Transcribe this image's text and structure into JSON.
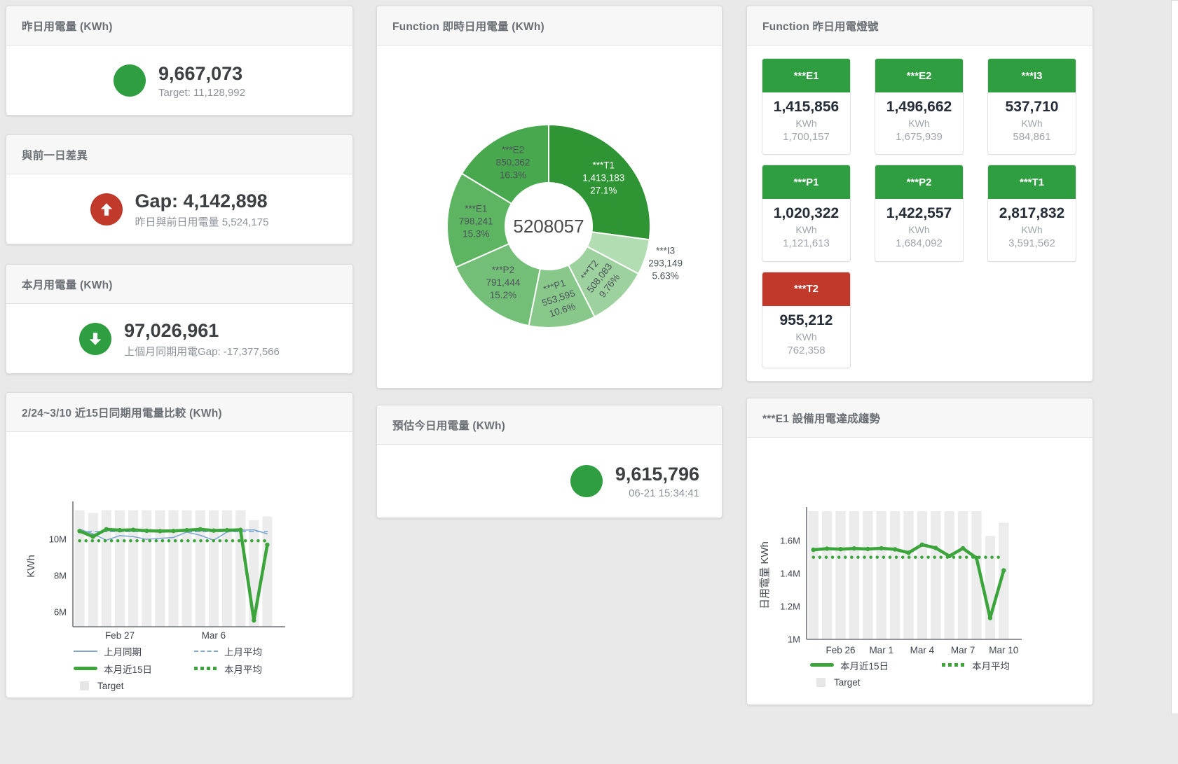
{
  "panels": {
    "yesterday": {
      "title": "昨日用電量 (KWh)",
      "value": "9,667,073",
      "subtitle": "Target: 11,128,992"
    },
    "diff_prev_day": {
      "title": "與前一日差異",
      "value": "Gap: 4,142,898",
      "subtitle": "昨日與前日用電量 5,524,175"
    },
    "month_usage": {
      "title": "本月用電量 (KWh)",
      "value": "97,026,961",
      "subtitle": "上個月同期用電Gap: -17,377,566"
    },
    "estimate_today": {
      "title": "預估今日用電量 (KWh)",
      "value": "9,615,796",
      "subtitle": "06-21 15:34:41"
    },
    "realtime_donut": {
      "title": "Function 即時日用電量 (KWh)"
    },
    "lights": {
      "title": "Function 昨日用電燈號",
      "unit": "KWh",
      "tiles": [
        {
          "name": "***E1",
          "value": "1,415,856",
          "target": "1,700,157",
          "status": "green"
        },
        {
          "name": "***E2",
          "value": "1,496,662",
          "target": "1,675,939",
          "status": "green"
        },
        {
          "name": "***I3",
          "value": "537,710",
          "target": "584,861",
          "status": "green"
        },
        {
          "name": "***P1",
          "value": "1,020,322",
          "target": "1,121,613",
          "status": "green"
        },
        {
          "name": "***P2",
          "value": "1,422,557",
          "target": "1,684,092",
          "status": "green"
        },
        {
          "name": "***T1",
          "value": "2,817,832",
          "target": "3,591,562",
          "status": "green"
        },
        {
          "name": "***T2",
          "value": "955,212",
          "target": "762,358",
          "status": "red"
        }
      ]
    },
    "compare15": {
      "title": "2/24~3/10 近15日同期用電量比較 (KWh)"
    },
    "e1_trend": {
      "title": "***E1 設備用電達成趨勢"
    }
  },
  "colors": {
    "green": "#2f9e41",
    "red": "#c0392b",
    "blue_line": "#7fa8d0",
    "green_line": "#3ba43b",
    "bar_gray": "#ececec"
  },
  "chart_data": [
    {
      "id": "realtime_donut",
      "type": "pie",
      "title": "Function 即時日用電量 (KWh)",
      "center_label": "5208057",
      "unit": "KWh",
      "slices": [
        {
          "name": "***T1",
          "value": 1413183,
          "value_label": "1,413,183",
          "pct": 27.1,
          "pct_label": "27.1%",
          "color": "#2e9434",
          "label_color": "#ffffff"
        },
        {
          "name": "***I3",
          "value": 293149,
          "value_label": "293,149",
          "pct": 5.63,
          "pct_label": "5.63%",
          "color": "#b2ddb3",
          "outside": true
        },
        {
          "name": "***T2",
          "value": 508083,
          "value_label": "508,083",
          "pct": 9.76,
          "pct_label": "9.76%",
          "color": "#9dd29f",
          "rotate": -52
        },
        {
          "name": "***P1",
          "value": 553595,
          "value_label": "553,595",
          "pct": 10.6,
          "pct_label": "10.6%",
          "color": "#88c98b",
          "rotate": -18
        },
        {
          "name": "***P2",
          "value": 791444,
          "value_label": "791,444",
          "pct": 15.2,
          "pct_label": "15.2%",
          "color": "#73bf77"
        },
        {
          "name": "***E1",
          "value": 798241,
          "value_label": "798,241",
          "pct": 15.3,
          "pct_label": "15.3%",
          "color": "#5db461"
        },
        {
          "name": "***E2",
          "value": 850362,
          "value_label": "850,362",
          "pct": 16.3,
          "pct_label": "16.3%",
          "color": "#47a84d"
        }
      ]
    },
    {
      "id": "compare15",
      "type": "line",
      "title": "2/24~3/10 近15日同期用電量比較 (KWh)",
      "ylabel": "KWh",
      "ylim": [
        5.2,
        11.85
      ],
      "yticks": [
        {
          "v": 6,
          "label": "6M"
        },
        {
          "v": 8,
          "label": "8M"
        },
        {
          "v": 10,
          "label": "10M"
        }
      ],
      "x_count": 15,
      "xticks": [
        {
          "i": 3,
          "label": "Feb 27"
        },
        {
          "i": 10,
          "label": "Mar 6"
        }
      ],
      "grid": false,
      "legend_position": "bottom",
      "bars": {
        "name": "Target",
        "color": "#ececec",
        "values_m": [
          11.6,
          11.45,
          11.6,
          11.6,
          11.6,
          11.6,
          11.6,
          11.6,
          11.6,
          11.6,
          11.6,
          11.6,
          11.6,
          11.05,
          11.25
        ]
      },
      "series": [
        {
          "name": "上月同期",
          "style": "thin",
          "color": "#7fa8d0",
          "values_m": [
            10.55,
            10.3,
            9.95,
            10.2,
            10.15,
            10.0,
            10.05,
            10.1,
            10.4,
            10.22,
            9.95,
            10.4,
            10.5,
            10.52,
            10.3
          ]
        },
        {
          "name": "上月平均",
          "style": "dash",
          "color": "#7fa8d0",
          "const_m": 10.42
        },
        {
          "name": "本月近15日",
          "style": "thick",
          "color": "#3ba43b",
          "values_m": [
            10.45,
            10.15,
            10.55,
            10.5,
            10.52,
            10.47,
            10.45,
            10.46,
            10.5,
            10.55,
            10.48,
            10.5,
            10.52,
            5.55,
            9.7
          ]
        },
        {
          "name": "本月平均",
          "style": "dot",
          "color": "#3ba43b",
          "const_m": 9.92
        }
      ],
      "legend": [
        {
          "label": "上月同期",
          "swatch": "thin",
          "color": "#7fa8d0"
        },
        {
          "label": "上月平均",
          "swatch": "dash",
          "color": "#7fa8d0"
        },
        {
          "label": "本月近15日",
          "swatch": "thick",
          "color": "#3ba43b"
        },
        {
          "label": "本月平均",
          "swatch": "dot",
          "color": "#3ba43b"
        },
        {
          "label": "Target",
          "swatch": "square",
          "color": "#e6e6e6"
        }
      ]
    },
    {
      "id": "e1_trend",
      "type": "line",
      "title": "***E1 設備用電達成趨勢",
      "ylabel": "日用電量 KWh",
      "ylim": [
        1.0,
        1.78
      ],
      "yticks": [
        {
          "v": 1,
          "label": "1M"
        },
        {
          "v": 1.2,
          "label": "1.2M"
        },
        {
          "v": 1.4,
          "label": "1.4M"
        },
        {
          "v": 1.6,
          "label": "1.6M"
        }
      ],
      "x_count": 15,
      "xticks": [
        {
          "i": 2,
          "label": "Feb 26"
        },
        {
          "i": 5,
          "label": "Mar 1"
        },
        {
          "i": 8,
          "label": "Mar 4"
        },
        {
          "i": 11,
          "label": "Mar 7"
        },
        {
          "i": 14,
          "label": "Mar 10"
        }
      ],
      "grid": false,
      "legend_position": "bottom",
      "bars": {
        "name": "Target",
        "color": "#ececec",
        "values_m": [
          1.78,
          1.78,
          1.78,
          1.78,
          1.78,
          1.78,
          1.78,
          1.78,
          1.78,
          1.78,
          1.78,
          1.78,
          1.78,
          1.63,
          1.71
        ]
      },
      "series": [
        {
          "name": "本月近15日",
          "style": "thick",
          "color": "#3ba43b",
          "values_m": [
            1.545,
            1.552,
            1.549,
            1.553,
            1.55,
            1.554,
            1.548,
            1.527,
            1.576,
            1.556,
            1.507,
            1.554,
            1.495,
            1.13,
            1.42
          ]
        },
        {
          "name": "本月平均",
          "style": "dot",
          "color": "#3ba43b",
          "const_m": 1.5
        }
      ],
      "legend": [
        {
          "label": "本月近15日",
          "swatch": "thick",
          "color": "#3ba43b"
        },
        {
          "label": "本月平均",
          "swatch": "dot",
          "color": "#3ba43b"
        },
        {
          "label": "Target",
          "swatch": "square",
          "color": "#e6e6e6"
        }
      ]
    }
  ]
}
